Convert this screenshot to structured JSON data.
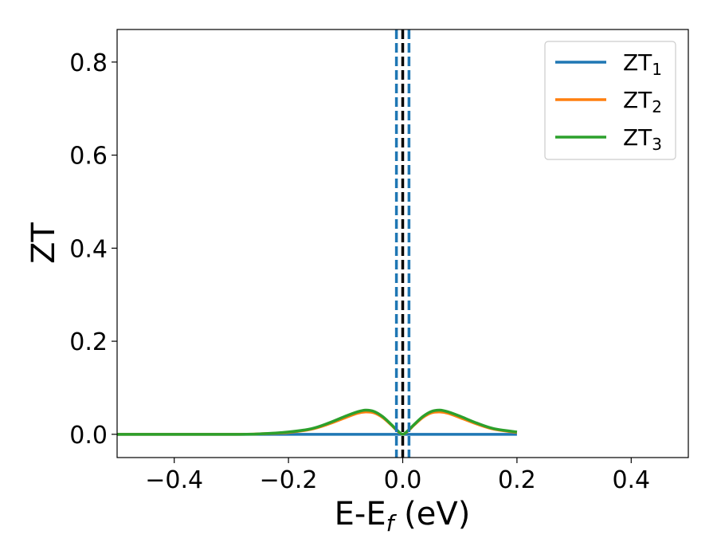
{
  "chart_data": {
    "type": "line",
    "title": "",
    "xlabel": "E-E_f (eV)",
    "ylabel": "ZT",
    "xlim": [
      -0.5,
      0.5
    ],
    "ylim": [
      -0.05,
      0.87
    ],
    "xticks": [
      -0.4,
      -0.2,
      0.0,
      0.2,
      0.4
    ],
    "xtick_labels": [
      "−0.4",
      "−0.2",
      "0.0",
      "0.2",
      "0.4"
    ],
    "yticks": [
      0.0,
      0.2,
      0.4,
      0.6,
      0.8
    ],
    "ytick_labels": [
      "0.0",
      "0.2",
      "0.4",
      "0.6",
      "0.8"
    ],
    "grid": false,
    "legend_position": "top-right",
    "series": [
      {
        "name": "ZT1",
        "name_base": "ZT",
        "name_sub": "1",
        "color": "#1f77b4",
        "x": [
          -0.5,
          -0.4,
          -0.3,
          -0.2,
          -0.1,
          0.0,
          0.1,
          0.2
        ],
        "y": [
          0,
          0,
          0,
          0,
          0,
          0,
          0,
          0
        ]
      },
      {
        "name": "ZT2",
        "name_base": "ZT",
        "name_sub": "2",
        "color": "#ff7f0e",
        "x": [
          -0.5,
          -0.3,
          -0.25,
          -0.2,
          -0.16,
          -0.13,
          -0.1,
          -0.08,
          -0.065,
          -0.05,
          -0.035,
          -0.02,
          -0.01,
          0.0,
          0.01,
          0.02,
          0.035,
          0.05,
          0.065,
          0.08,
          0.1,
          0.13,
          0.16,
          0.2
        ],
        "y": [
          0,
          0.0,
          0.001,
          0.004,
          0.011,
          0.022,
          0.036,
          0.045,
          0.048,
          0.046,
          0.036,
          0.02,
          0.008,
          0.0,
          0.008,
          0.02,
          0.036,
          0.046,
          0.048,
          0.045,
          0.036,
          0.022,
          0.011,
          0.004
        ]
      },
      {
        "name": "ZT3",
        "name_base": "ZT",
        "name_sub": "3",
        "color": "#2ca02c",
        "x": [
          -0.5,
          -0.3,
          -0.25,
          -0.2,
          -0.16,
          -0.13,
          -0.1,
          -0.08,
          -0.065,
          -0.05,
          -0.035,
          -0.02,
          -0.01,
          0.0,
          0.01,
          0.02,
          0.035,
          0.05,
          0.065,
          0.08,
          0.1,
          0.13,
          0.16,
          0.2
        ],
        "y": [
          0,
          0.0,
          0.001,
          0.005,
          0.012,
          0.024,
          0.039,
          0.048,
          0.052,
          0.049,
          0.038,
          0.021,
          0.009,
          0.0,
          0.009,
          0.021,
          0.038,
          0.049,
          0.052,
          0.048,
          0.039,
          0.024,
          0.012,
          0.005
        ]
      }
    ],
    "vertical_lines": [
      {
        "x": 0.0,
        "color": "#000000",
        "style": "dashed"
      },
      {
        "x": -0.011,
        "color": "#1f77b4",
        "style": "dashed"
      },
      {
        "x": 0.011,
        "color": "#1f77b4",
        "style": "dashed"
      }
    ]
  }
}
